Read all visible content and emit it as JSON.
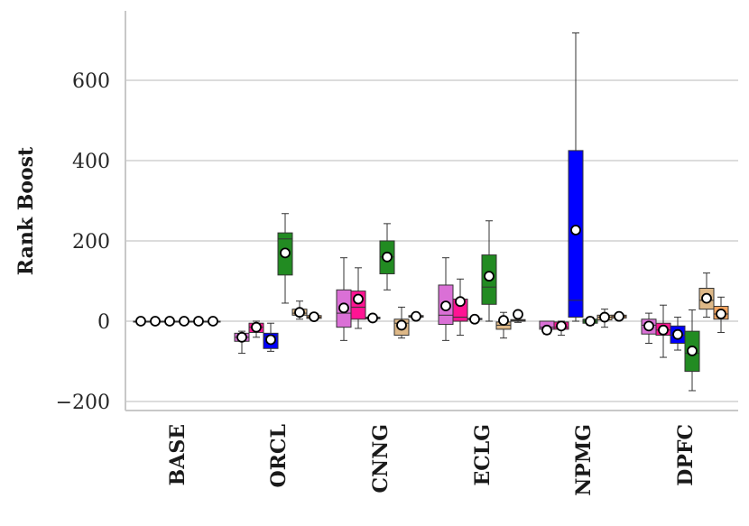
{
  "chart_data": {
    "type": "box",
    "title": "",
    "xlabel": "",
    "ylabel": "Rank Boost",
    "ylim": [
      -220,
      770
    ],
    "yticks": [
      600,
      400,
      200,
      0,
      -200
    ],
    "ytick_labels": [
      "600",
      "400",
      "200",
      "0",
      "−200"
    ],
    "grid": "horizontal",
    "legend": "none",
    "categories": [
      "BASE",
      "ORCL",
      "CNNG",
      "ECLG",
      "NPMG",
      "DPFC"
    ],
    "series": [
      {
        "color": "#da70d6",
        "boxes": [
          {
            "min": 0,
            "q1": 0,
            "median": 0,
            "q3": 0,
            "max": 0,
            "mean": 0
          },
          {
            "min": -80,
            "q1": -50,
            "median": -40,
            "q3": -30,
            "max": -25,
            "mean": -40
          },
          {
            "min": -48,
            "q1": -15,
            "median": 20,
            "q3": 78,
            "max": 158,
            "mean": 33
          },
          {
            "min": -48,
            "q1": -8,
            "median": 15,
            "q3": 90,
            "max": 158,
            "mean": 38
          },
          {
            "min": -32,
            "q1": -20,
            "median": -15,
            "q3": 0,
            "max": 0,
            "mean": -22
          },
          {
            "min": -55,
            "q1": -32,
            "median": -10,
            "q3": 5,
            "max": 20,
            "mean": -12
          }
        ]
      },
      {
        "color": "#ff1493",
        "boxes": [
          {
            "min": 0,
            "q1": 0,
            "median": 0,
            "q3": 0,
            "max": 0,
            "mean": 0
          },
          {
            "min": -40,
            "q1": -28,
            "median": -15,
            "q3": -5,
            "max": 0,
            "mean": -15
          },
          {
            "min": -18,
            "q1": 5,
            "median": 35,
            "q3": 75,
            "max": 133,
            "mean": 55
          },
          {
            "min": -35,
            "q1": 0,
            "median": 10,
            "q3": 55,
            "max": 105,
            "mean": 49
          },
          {
            "min": -35,
            "q1": -20,
            "median": -15,
            "q3": -2,
            "max": 0,
            "mean": -12
          },
          {
            "min": -90,
            "q1": -35,
            "median": -22,
            "q3": -5,
            "max": 40,
            "mean": -22
          }
        ]
      },
      {
        "color": "#0000ff",
        "boxes": [
          {
            "min": 0,
            "q1": 0,
            "median": 0,
            "q3": 0,
            "max": 0,
            "mean": 0
          },
          {
            "min": -75,
            "q1": -68,
            "median": -38,
            "q3": -30,
            "max": -5,
            "mean": -46
          },
          {
            "min": 5,
            "q1": 6,
            "median": 8,
            "q3": 10,
            "max": 12,
            "mean": 8
          },
          {
            "min": 3,
            "q1": 4,
            "median": 5,
            "q3": 7,
            "max": 10,
            "mean": 5
          },
          {
            "min": 0,
            "q1": 10,
            "median": 52,
            "q3": 425,
            "max": 718,
            "mean": 227
          },
          {
            "min": -72,
            "q1": -55,
            "median": -35,
            "q3": -12,
            "max": 10,
            "mean": -33
          }
        ]
      },
      {
        "color": "#228b22",
        "boxes": [
          {
            "min": 0,
            "q1": 0,
            "median": 0,
            "q3": 0,
            "max": 0,
            "mean": 0
          },
          {
            "min": 45,
            "q1": 115,
            "median": 205,
            "q3": 220,
            "max": 268,
            "mean": 170
          },
          {
            "min": 78,
            "q1": 118,
            "median": 160,
            "q3": 200,
            "max": 243,
            "mean": 160
          },
          {
            "min": 0,
            "q1": 42,
            "median": 85,
            "q3": 165,
            "max": 250,
            "mean": 112
          },
          {
            "min": -10,
            "q1": -5,
            "median": 0,
            "q3": 5,
            "max": 10,
            "mean": 0
          },
          {
            "min": -173,
            "q1": -125,
            "median": -80,
            "q3": -25,
            "max": 28,
            "mean": -74
          }
        ]
      },
      {
        "color": "#deb887",
        "boxes": [
          {
            "min": 0,
            "q1": 0,
            "median": 0,
            "q3": 0,
            "max": 0,
            "mean": 0
          },
          {
            "min": 5,
            "q1": 15,
            "median": 20,
            "q3": 30,
            "max": 50,
            "mean": 22
          },
          {
            "min": -42,
            "q1": -35,
            "median": -5,
            "q3": 5,
            "max": 35,
            "mean": -10
          },
          {
            "min": -42,
            "q1": -20,
            "median": -10,
            "q3": -2,
            "max": 22,
            "mean": 2
          },
          {
            "min": -15,
            "q1": 3,
            "median": 10,
            "q3": 15,
            "max": 30,
            "mean": 10
          },
          {
            "min": 10,
            "q1": 30,
            "median": 52,
            "q3": 82,
            "max": 120,
            "mean": 57
          }
        ]
      },
      {
        "color": "#f4a460",
        "boxes": [
          {
            "min": 0,
            "q1": 0,
            "median": 0,
            "q3": 0,
            "max": 0,
            "mean": 0
          },
          {
            "min": 5,
            "q1": 7,
            "median": 10,
            "q3": 14,
            "max": 18,
            "mean": 11
          },
          {
            "min": 8,
            "q1": 10,
            "median": 12,
            "q3": 14,
            "max": 18,
            "mean": 12
          },
          {
            "min": -3,
            "q1": 0,
            "median": 2,
            "q3": 4,
            "max": 20,
            "mean": 17
          },
          {
            "min": 5,
            "q1": 8,
            "median": 12,
            "q3": 15,
            "max": 20,
            "mean": 12
          },
          {
            "min": -28,
            "q1": 5,
            "median": 18,
            "q3": 37,
            "max": 60,
            "mean": 18
          }
        ]
      }
    ]
  }
}
